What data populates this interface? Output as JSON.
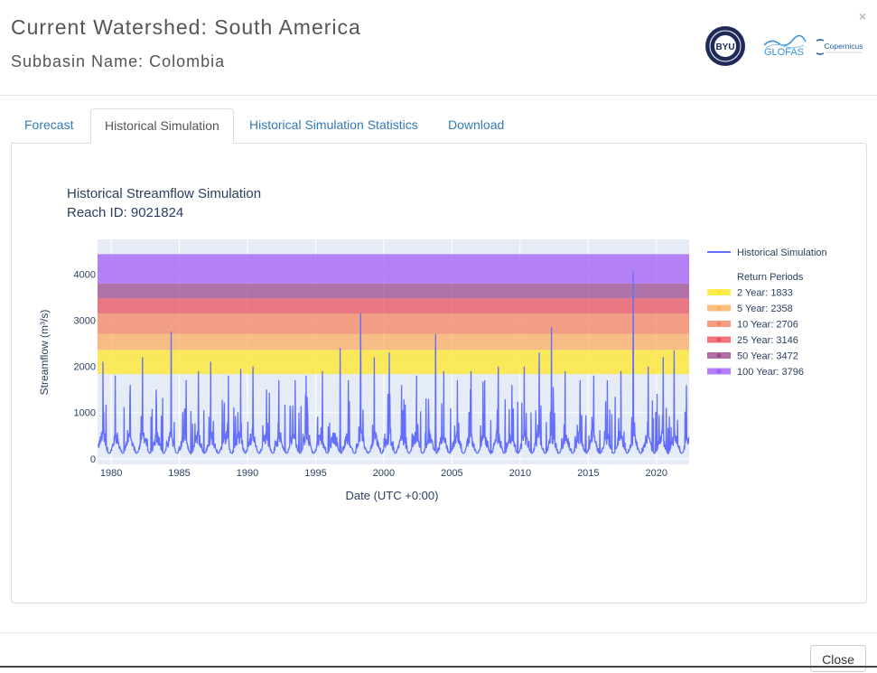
{
  "header": {
    "title": "Current Watershed: South America",
    "subtitle": "Subbasin Name: Colombia",
    "close_icon": "×",
    "logos": {
      "byu": "BYU",
      "glofas": "GLOFAS",
      "copernicus": "Copernicus"
    }
  },
  "tabs": [
    {
      "label": "Forecast"
    },
    {
      "label": "Historical Simulation"
    },
    {
      "label": "Historical Simulation Statistics"
    },
    {
      "label": "Download"
    }
  ],
  "active_tab": "Historical Simulation",
  "footer": {
    "close_label": "Close"
  },
  "chart_data": {
    "type": "line",
    "title": "Historical Streamflow Simulation",
    "subtitle": "Reach ID: 9021824",
    "xlabel": "Date (UTC +0:00)",
    "ylabel": "Streamflow (m³/s)",
    "xlim": [
      1979,
      2022.4
    ],
    "ylim": [
      -120,
      4750
    ],
    "x_ticks": [
      1980,
      1985,
      1990,
      1995,
      2000,
      2005,
      2010,
      2015,
      2020
    ],
    "y_ticks": [
      0,
      1000,
      2000,
      3000,
      4000
    ],
    "grid": true,
    "legend_position": "right",
    "series": [
      {
        "name": "Historical Simulation",
        "color": "#636efa",
        "annual_peaks": [
          {
            "x": 1979.4,
            "y": 2100
          },
          {
            "x": 1980.3,
            "y": 1800
          },
          {
            "x": 1981.4,
            "y": 1600
          },
          {
            "x": 1982.3,
            "y": 2200
          },
          {
            "x": 1983.3,
            "y": 1500
          },
          {
            "x": 1984.4,
            "y": 2750
          },
          {
            "x": 1985.5,
            "y": 1700
          },
          {
            "x": 1986.4,
            "y": 1900
          },
          {
            "x": 1987.3,
            "y": 2100
          },
          {
            "x": 1988.6,
            "y": 1800
          },
          {
            "x": 1989.5,
            "y": 1950
          },
          {
            "x": 1990.4,
            "y": 2000
          },
          {
            "x": 1991.4,
            "y": 1500
          },
          {
            "x": 1992.3,
            "y": 1700
          },
          {
            "x": 1993.5,
            "y": 1700
          },
          {
            "x": 1994.3,
            "y": 1800
          },
          {
            "x": 1995.5,
            "y": 1900
          },
          {
            "x": 1996.8,
            "y": 2400
          },
          {
            "x": 1997.4,
            "y": 1700
          },
          {
            "x": 1998.3,
            "y": 3150
          },
          {
            "x": 1999.3,
            "y": 2200
          },
          {
            "x": 2000.4,
            "y": 2300
          },
          {
            "x": 2001.3,
            "y": 1600
          },
          {
            "x": 2002.4,
            "y": 1800
          },
          {
            "x": 2003.8,
            "y": 2700
          },
          {
            "x": 2004.4,
            "y": 1900
          },
          {
            "x": 2005.4,
            "y": 1700
          },
          {
            "x": 2006.4,
            "y": 1900
          },
          {
            "x": 2007.4,
            "y": 1700
          },
          {
            "x": 2008.4,
            "y": 2000
          },
          {
            "x": 2009.4,
            "y": 1600
          },
          {
            "x": 2010.3,
            "y": 2000
          },
          {
            "x": 2011.4,
            "y": 2300
          },
          {
            "x": 2012.3,
            "y": 2850
          },
          {
            "x": 2013.3,
            "y": 1900
          },
          {
            "x": 2014.4,
            "y": 1700
          },
          {
            "x": 2015.4,
            "y": 1800
          },
          {
            "x": 2016.4,
            "y": 1700
          },
          {
            "x": 2017.4,
            "y": 1900
          },
          {
            "x": 2018.3,
            "y": 4050
          },
          {
            "x": 2019.4,
            "y": 2000
          },
          {
            "x": 2020.5,
            "y": 2200
          },
          {
            "x": 2021.3,
            "y": 2350
          },
          {
            "x": 2022.2,
            "y": 1600
          }
        ]
      }
    ],
    "legend_group_title": "Return Periods",
    "return_periods": [
      {
        "label": "2 Year: 1833",
        "value": 1833,
        "color": "#fde725"
      },
      {
        "label": "5 Year: 2358",
        "value": 2358,
        "color": "#fdae61"
      },
      {
        "label": "10 Year: 2706",
        "value": 2706,
        "color": "#f4845f"
      },
      {
        "label": "25 Year: 3146",
        "value": 3146,
        "color": "#e8505b"
      },
      {
        "label": "50 Year: 3472",
        "value": 3472,
        "color": "#9d4b8c"
      },
      {
        "label": "100 Year: 3796",
        "value": 3796,
        "color": "#a35cf5"
      }
    ],
    "band_top": 4430
  }
}
